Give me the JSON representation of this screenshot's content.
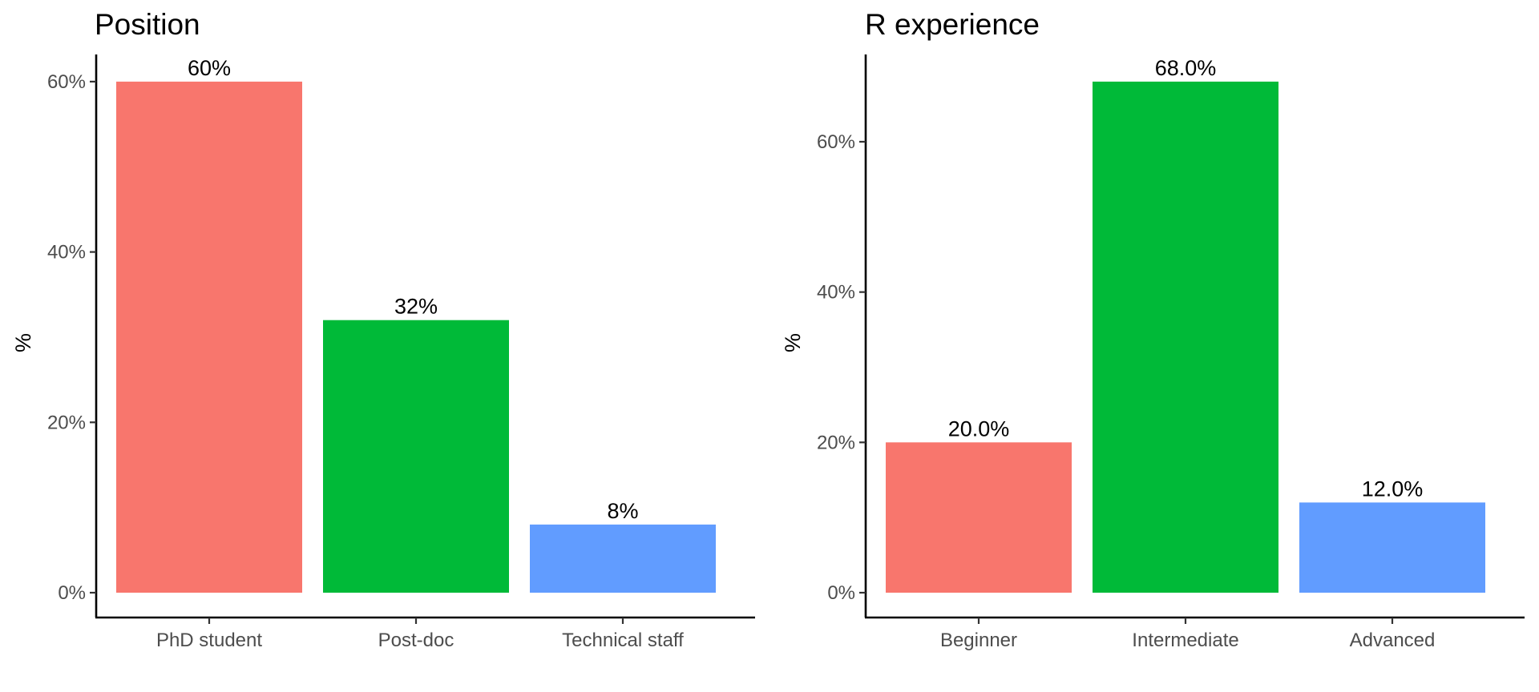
{
  "chart_data": [
    {
      "type": "bar",
      "title": "Position",
      "ylabel": "%",
      "xlabel": "",
      "categories": [
        "PhD student",
        "Post-doc",
        "Technical staff"
      ],
      "values": [
        60,
        32,
        8
      ],
      "data_labels": [
        "60%",
        "32%",
        "8%"
      ],
      "ylim": [
        0,
        63
      ],
      "yticks": [
        0,
        20,
        40,
        60
      ],
      "ytick_labels": [
        "0%",
        "20%",
        "40%",
        "60%"
      ],
      "colors": [
        "#F8766D",
        "#00BA38",
        "#619CFF"
      ],
      "grid": false,
      "legend": "none"
    },
    {
      "type": "bar",
      "title": "R experience",
      "ylabel": "%",
      "xlabel": "",
      "categories": [
        "Beginner",
        "Intermediate",
        "Advanced"
      ],
      "values": [
        20,
        68,
        12
      ],
      "data_labels": [
        "20.0%",
        "68.0%",
        "12.0%"
      ],
      "ylim": [
        0,
        71.4
      ],
      "yticks": [
        0,
        20,
        40,
        60
      ],
      "ytick_labels": [
        "0%",
        "20%",
        "40%",
        "60%"
      ],
      "colors": [
        "#F8766D",
        "#00BA38",
        "#619CFF"
      ],
      "grid": false,
      "legend": "none"
    }
  ]
}
